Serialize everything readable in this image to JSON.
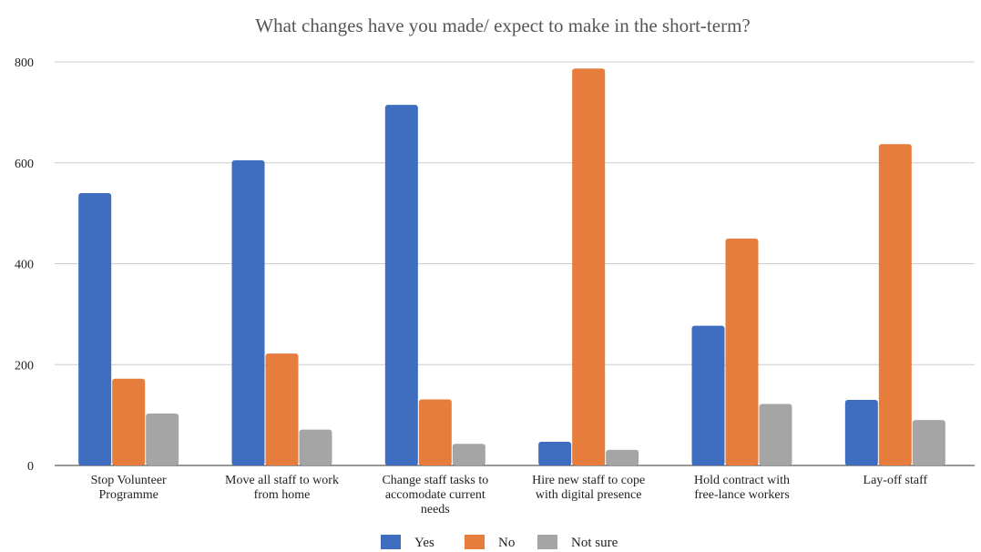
{
  "chart_data": {
    "type": "bar",
    "title": "What changes have you made/ expect to make in the short-term?",
    "xlabel": "",
    "ylabel": "",
    "ylim": [
      0,
      800
    ],
    "yticks": [
      0,
      200,
      400,
      600,
      800
    ],
    "grid": true,
    "legend_position": "bottom",
    "categories": [
      [
        "Stop Volunteer",
        "Programme"
      ],
      [
        "Move all staff to work",
        "from home"
      ],
      [
        "Change staff tasks to",
        "accomodate current",
        "needs"
      ],
      [
        "Hire new staff to cope",
        "with digital presence"
      ],
      [
        "Hold contract with",
        "free-lance workers"
      ],
      [
        "Lay-off staff"
      ]
    ],
    "series": [
      {
        "name": "Yes",
        "color": "#3f6dbf",
        "values": [
          540,
          605,
          715,
          47,
          277,
          130
        ]
      },
      {
        "name": "No",
        "color": "#e67d3c",
        "values": [
          172,
          222,
          131,
          787,
          450,
          637
        ]
      },
      {
        "name": "Not sure",
        "color": "#a5a5a5",
        "values": [
          103,
          71,
          43,
          31,
          122,
          90
        ]
      }
    ]
  }
}
